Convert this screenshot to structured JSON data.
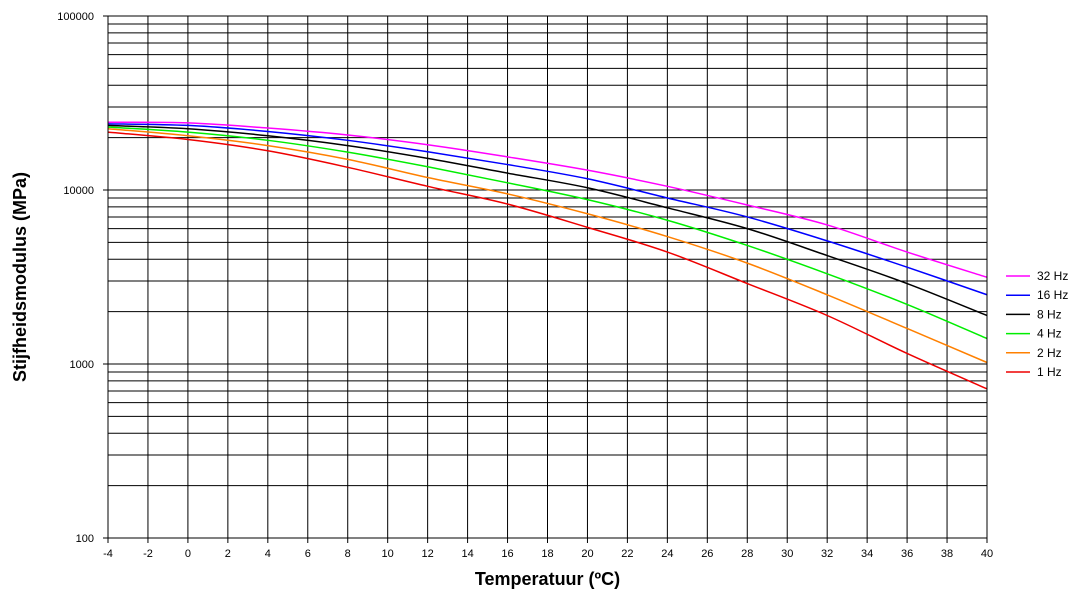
{
  "chart_data": {
    "type": "line",
    "title": "",
    "xlabel": "Temperatuur (ºC)",
    "ylabel": "Stijfheidsmodulus (MPa)",
    "xlim": [
      -4,
      40
    ],
    "ylim": [
      100,
      100000
    ],
    "y_scale": "log",
    "grid": true,
    "legend_position": "right",
    "x_ticks": [
      "-4",
      "-2",
      "0",
      "2",
      "4",
      "6",
      "8",
      "10",
      "12",
      "14",
      "16",
      "18",
      "20",
      "22",
      "24",
      "26",
      "28",
      "30",
      "32",
      "34",
      "36",
      "38",
      "40"
    ],
    "y_ticks": [
      "100",
      "1000",
      "10000",
      "100000"
    ],
    "x": [
      -4,
      0,
      4,
      8,
      12,
      16,
      20,
      24,
      28,
      32,
      36,
      40
    ],
    "series": [
      {
        "name": "32 Hz",
        "color": "#ff00ff",
        "values": [
          24500,
          24300,
          22700,
          20700,
          18200,
          15500,
          13000,
          10500,
          8200,
          6300,
          4400,
          3150
        ]
      },
      {
        "name": "16 Hz",
        "color": "#0000ff",
        "values": [
          24000,
          23500,
          21700,
          19300,
          16600,
          14000,
          11600,
          9000,
          7000,
          5100,
          3600,
          2500
        ]
      },
      {
        "name": "8 Hz",
        "color": "#000000",
        "values": [
          23500,
          22500,
          20500,
          18000,
          15200,
          12500,
          10300,
          7900,
          6000,
          4200,
          2900,
          1900
        ]
      },
      {
        "name": "4 Hz",
        "color": "#00ee00",
        "values": [
          23000,
          21500,
          19300,
          16500,
          13600,
          11000,
          8800,
          6700,
          4800,
          3300,
          2200,
          1400
        ]
      },
      {
        "name": "2 Hz",
        "color": "#ff8000",
        "values": [
          22500,
          20500,
          18000,
          15000,
          11800,
          9500,
          7300,
          5400,
          3800,
          2500,
          1600,
          1020
        ]
      },
      {
        "name": "1 Hz",
        "color": "#ee0000",
        "values": [
          21500,
          19500,
          16800,
          13500,
          10500,
          8300,
          6100,
          4400,
          2900,
          1900,
          1150,
          720
        ]
      }
    ]
  }
}
